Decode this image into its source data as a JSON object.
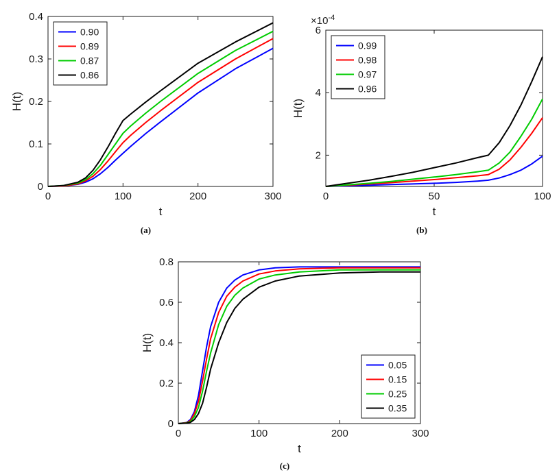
{
  "figure": {
    "background": "#ffffff"
  },
  "chart_data": [
    {
      "type": "line",
      "caption": "(a)",
      "xlabel": "t",
      "ylabel": "H(t)",
      "xlim": [
        0,
        300
      ],
      "ylim": [
        0,
        0.4
      ],
      "xticks": [
        0,
        100,
        200,
        300
      ],
      "xtick_labels": [
        "0",
        "100",
        "200",
        "300"
      ],
      "yticks": [
        0,
        0.1,
        0.2,
        0.3,
        0.4
      ],
      "ytick_labels": [
        "0",
        "0.1",
        "0.2",
        "0.3",
        "0.4"
      ],
      "legend": {
        "position": "upper-left"
      },
      "series": [
        {
          "name": "0.90",
          "color": "#0000ff",
          "x": [
            0,
            20,
            40,
            50,
            60,
            70,
            80,
            90,
            100,
            110,
            130,
            150,
            200,
            250,
            300
          ],
          "y": [
            0,
            0.001,
            0.005,
            0.01,
            0.018,
            0.03,
            0.045,
            0.062,
            0.078,
            0.094,
            0.124,
            0.152,
            0.22,
            0.277,
            0.325
          ]
        },
        {
          "name": "0.89",
          "color": "#ff0000",
          "x": [
            0,
            20,
            40,
            50,
            60,
            70,
            80,
            90,
            100,
            110,
            130,
            150,
            200,
            250,
            300
          ],
          "y": [
            0,
            0.001,
            0.006,
            0.013,
            0.024,
            0.04,
            0.06,
            0.082,
            0.103,
            0.12,
            0.15,
            0.178,
            0.245,
            0.3,
            0.348
          ]
        },
        {
          "name": "0.87",
          "color": "#00cc00",
          "x": [
            0,
            20,
            40,
            50,
            60,
            70,
            80,
            90,
            100,
            110,
            130,
            150,
            200,
            250,
            300
          ],
          "y": [
            0,
            0.002,
            0.008,
            0.016,
            0.03,
            0.05,
            0.075,
            0.1,
            0.125,
            0.142,
            0.172,
            0.2,
            0.266,
            0.32,
            0.365
          ]
        },
        {
          "name": "0.86",
          "color": "#000000",
          "x": [
            0,
            20,
            40,
            50,
            60,
            70,
            80,
            90,
            100,
            110,
            130,
            150,
            200,
            250,
            300
          ],
          "y": [
            0,
            0.002,
            0.01,
            0.02,
            0.038,
            0.063,
            0.093,
            0.125,
            0.155,
            0.17,
            0.198,
            0.225,
            0.29,
            0.34,
            0.385
          ]
        }
      ]
    },
    {
      "type": "line",
      "caption": "(b)",
      "xlabel": "t",
      "ylabel": "H(t)",
      "xlim": [
        0,
        100
      ],
      "ylim": [
        1,
        6
      ],
      "xticks": [
        0,
        50,
        100
      ],
      "xtick_labels": [
        "0",
        "50",
        "100"
      ],
      "yticks": [
        2,
        4,
        6
      ],
      "ytick_labels": [
        "2",
        "4",
        "6"
      ],
      "y_exponent": {
        "base": "×10",
        "exp": "-4"
      },
      "legend": {
        "position": "upper-left"
      },
      "series": [
        {
          "name": "0.99",
          "color": "#0000ff",
          "x": [
            0,
            10,
            20,
            30,
            40,
            50,
            60,
            70,
            75,
            80,
            85,
            90,
            95,
            100
          ],
          "y": [
            1,
            1.02,
            1.04,
            1.06,
            1.08,
            1.1,
            1.13,
            1.17,
            1.2,
            1.27,
            1.38,
            1.52,
            1.72,
            1.97
          ]
        },
        {
          "name": "0.98",
          "color": "#ff0000",
          "x": [
            0,
            10,
            20,
            30,
            40,
            50,
            60,
            70,
            75,
            80,
            85,
            90,
            95,
            100
          ],
          "y": [
            1,
            1.04,
            1.08,
            1.12,
            1.17,
            1.22,
            1.28,
            1.34,
            1.38,
            1.55,
            1.85,
            2.25,
            2.7,
            3.2
          ]
        },
        {
          "name": "0.97",
          "color": "#00cc00",
          "x": [
            0,
            10,
            20,
            30,
            40,
            50,
            60,
            70,
            75,
            80,
            85,
            90,
            95,
            100
          ],
          "y": [
            1,
            1.05,
            1.1,
            1.16,
            1.23,
            1.3,
            1.38,
            1.47,
            1.52,
            1.75,
            2.1,
            2.6,
            3.15,
            3.8
          ]
        },
        {
          "name": "0.96",
          "color": "#000000",
          "x": [
            0,
            10,
            20,
            30,
            40,
            50,
            60,
            70,
            75,
            80,
            85,
            90,
            95,
            100
          ],
          "y": [
            1,
            1.1,
            1.2,
            1.32,
            1.45,
            1.6,
            1.75,
            1.92,
            2.0,
            2.4,
            2.95,
            3.6,
            4.35,
            5.15
          ]
        }
      ]
    },
    {
      "type": "line",
      "caption": "(c)",
      "xlabel": "t",
      "ylabel": "H(t)",
      "xlim": [
        0,
        300
      ],
      "ylim": [
        0,
        0.8
      ],
      "xticks": [
        0,
        100,
        200,
        300
      ],
      "xtick_labels": [
        "0",
        "100",
        "200",
        "300"
      ],
      "yticks": [
        0,
        0.2,
        0.4,
        0.6,
        0.8
      ],
      "ytick_labels": [
        "0",
        "0.2",
        "0.4",
        "0.6",
        "0.8"
      ],
      "legend": {
        "position": "lower-right"
      },
      "series": [
        {
          "name": "0.05",
          "color": "#0000ff",
          "x": [
            0,
            10,
            15,
            20,
            25,
            30,
            35,
            40,
            50,
            60,
            70,
            80,
            100,
            120,
            150,
            200,
            250,
            300
          ],
          "y": [
            0,
            0.005,
            0.02,
            0.06,
            0.14,
            0.26,
            0.38,
            0.48,
            0.6,
            0.67,
            0.71,
            0.735,
            0.76,
            0.77,
            0.775,
            0.775,
            0.775,
            0.775
          ]
        },
        {
          "name": "0.15",
          "color": "#ff0000",
          "x": [
            0,
            10,
            15,
            20,
            25,
            30,
            35,
            40,
            50,
            60,
            70,
            80,
            100,
            120,
            150,
            200,
            250,
            300
          ],
          "y": [
            0,
            0.004,
            0.015,
            0.05,
            0.11,
            0.21,
            0.32,
            0.42,
            0.55,
            0.63,
            0.675,
            0.705,
            0.74,
            0.755,
            0.765,
            0.77,
            0.77,
            0.77
          ]
        },
        {
          "name": "0.25",
          "color": "#00cc00",
          "x": [
            0,
            10,
            15,
            20,
            25,
            30,
            35,
            40,
            50,
            60,
            70,
            80,
            100,
            120,
            150,
            200,
            250,
            300
          ],
          "y": [
            0,
            0.003,
            0.01,
            0.035,
            0.08,
            0.16,
            0.26,
            0.35,
            0.49,
            0.58,
            0.635,
            0.67,
            0.715,
            0.735,
            0.75,
            0.76,
            0.76,
            0.76
          ]
        },
        {
          "name": "0.35",
          "color": "#000000",
          "x": [
            0,
            10,
            15,
            20,
            25,
            30,
            35,
            40,
            50,
            60,
            70,
            80,
            100,
            120,
            150,
            200,
            250,
            300
          ],
          "y": [
            0,
            0.002,
            0.006,
            0.02,
            0.05,
            0.1,
            0.18,
            0.27,
            0.4,
            0.5,
            0.57,
            0.615,
            0.675,
            0.705,
            0.73,
            0.745,
            0.75,
            0.75
          ]
        }
      ]
    }
  ]
}
